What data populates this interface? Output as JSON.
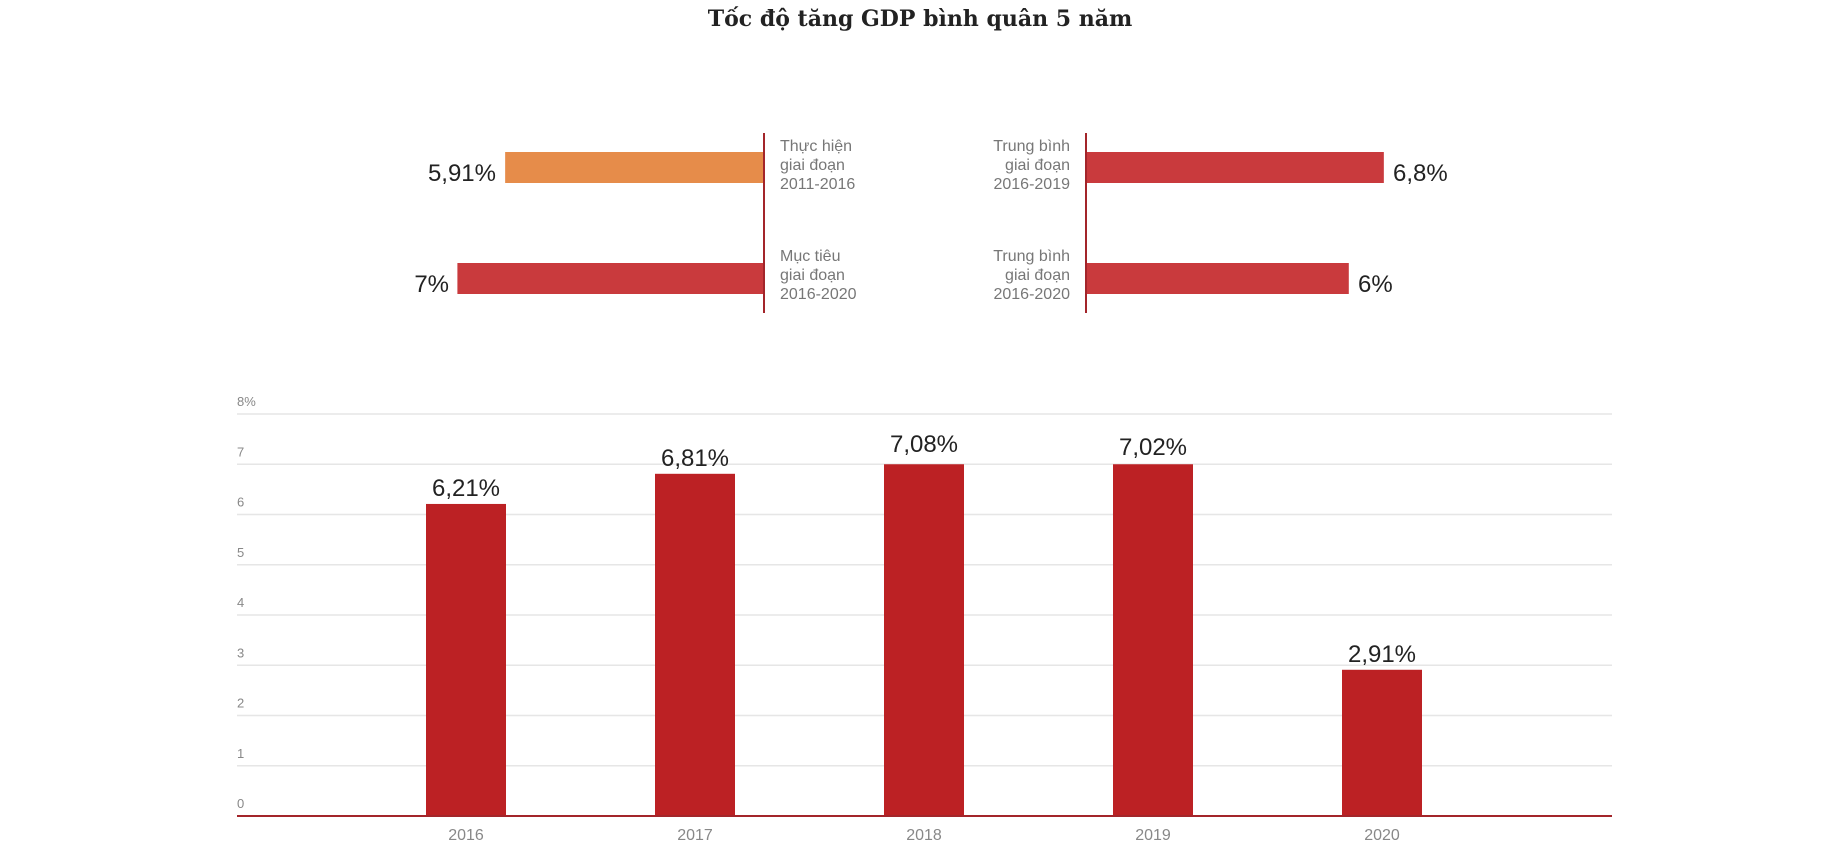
{
  "title": "Tốc độ tăng GDP bình quân 5 năm",
  "colors": {
    "orange": "#E68C4A",
    "red_light": "#C93A3D",
    "red_dark": "#BC2124",
    "axis": "#A3252A",
    "grid": "#E6E6E6"
  },
  "chart_data": [
    {
      "type": "bar",
      "orientation": "horizontal",
      "title": "",
      "series": [
        {
          "name": "Thực hiện giai đoạn 2011-2016",
          "value": 5.91,
          "value_label": "5,91%",
          "label_lines": [
            "Thực hiện",
            "giai đoạn",
            "2011-2016"
          ],
          "color": "#E68C4A",
          "side": "left"
        },
        {
          "name": "Mục tiêu giai đoạn 2016-2020",
          "value": 7,
          "value_label": "7%",
          "label_lines": [
            "Mục tiêu",
            "giai đoạn",
            "2016-2020"
          ],
          "color": "#C93A3D",
          "side": "left"
        },
        {
          "name": "Trung bình giai đoạn 2016-2019",
          "value": 6.8,
          "value_label": "6,8%",
          "label_lines": [
            "Trung bình",
            "giai đoạn",
            "2016-2019"
          ],
          "color": "#C93A3D",
          "side": "right"
        },
        {
          "name": "Trung bình giai đoạn 2016-2020",
          "value": 6,
          "value_label": "6%",
          "label_lines": [
            "Trung bình",
            "giai đoạn",
            "2016-2020"
          ],
          "color": "#C93A3D",
          "side": "right"
        }
      ]
    },
    {
      "type": "bar",
      "title": "",
      "categories": [
        "2016",
        "2017",
        "2018",
        "2019",
        "2020"
      ],
      "values": [
        6.21,
        6.81,
        7.08,
        7.02,
        2.91
      ],
      "value_labels": [
        "6,21%",
        "6,81%",
        "7,08%",
        "7,02%",
        "2,91%"
      ],
      "yticks": [
        "0",
        "1",
        "2",
        "3",
        "4",
        "5",
        "6",
        "7",
        "8%"
      ],
      "ylim": [
        0,
        8
      ],
      "xlabel": "",
      "ylabel": "",
      "grid": true
    }
  ]
}
